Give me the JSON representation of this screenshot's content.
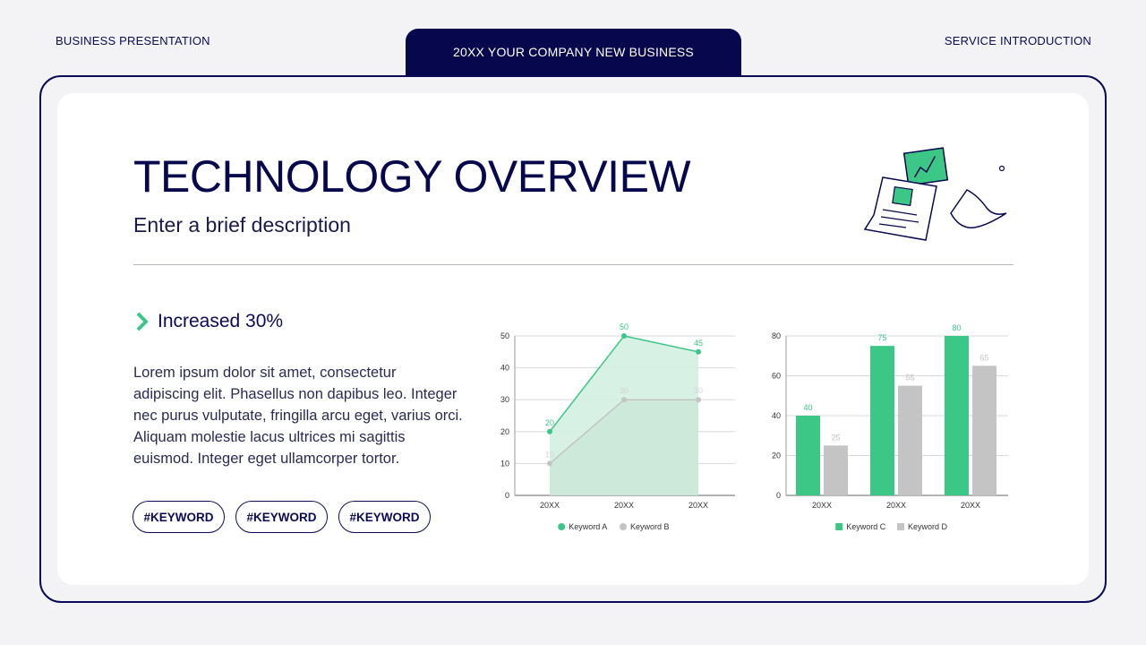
{
  "header": {
    "left": "BUSINESS PRESENTATION",
    "center": "20XX YOUR COMPANY NEW  BUSINESS",
    "right": "SERVICE INTRODUCTION"
  },
  "slide": {
    "title": "TECHNOLOGY OVERVIEW",
    "subtitle": "Enter a brief description",
    "highlight": "Increased 30%",
    "body": "Lorem ipsum dolor sit amet, consectetur adipiscing elit. Phasellus non dapibus leo. Integer nec purus vulputate, fringilla arcu eget, varius orci. Aliquam molestie lacus ultrices mi sagittis euismod. Integer eget ullamcorper tortor.",
    "keywords": [
      "#KEYWORD",
      "#KEYWORD",
      "#KEYWORD"
    ]
  },
  "icons": {
    "highlight": "chevron-right-icon",
    "illustration": "documents-chart-icon"
  },
  "colors": {
    "navy": "#07074d",
    "green": "#3cc786",
    "gray": "#c4c4c4",
    "area": "#d3efe2"
  },
  "chart_data": [
    {
      "type": "area",
      "categories": [
        "20XX",
        "20XX",
        "20XX"
      ],
      "series": [
        {
          "name": "Keyword A",
          "values": [
            20,
            50,
            45
          ],
          "color": "#3cc786"
        },
        {
          "name": "Keyword B",
          "values": [
            10,
            30,
            30
          ],
          "color": "#c4c4c4"
        }
      ],
      "yticks": [
        0,
        10,
        20,
        30,
        40,
        50
      ],
      "ylim": [
        0,
        50
      ],
      "grid": true,
      "legend": "bottom"
    },
    {
      "type": "bar",
      "categories": [
        "20XX",
        "20XX",
        "20XX"
      ],
      "series": [
        {
          "name": "Keyword C",
          "values": [
            40,
            75,
            80
          ],
          "color": "#3cc786"
        },
        {
          "name": "Keyword D",
          "values": [
            25,
            55,
            65
          ],
          "color": "#c4c4c4"
        }
      ],
      "yticks": [
        0,
        20,
        40,
        60,
        80
      ],
      "ylim": [
        0,
        80
      ],
      "grid": true,
      "legend": "bottom"
    }
  ]
}
